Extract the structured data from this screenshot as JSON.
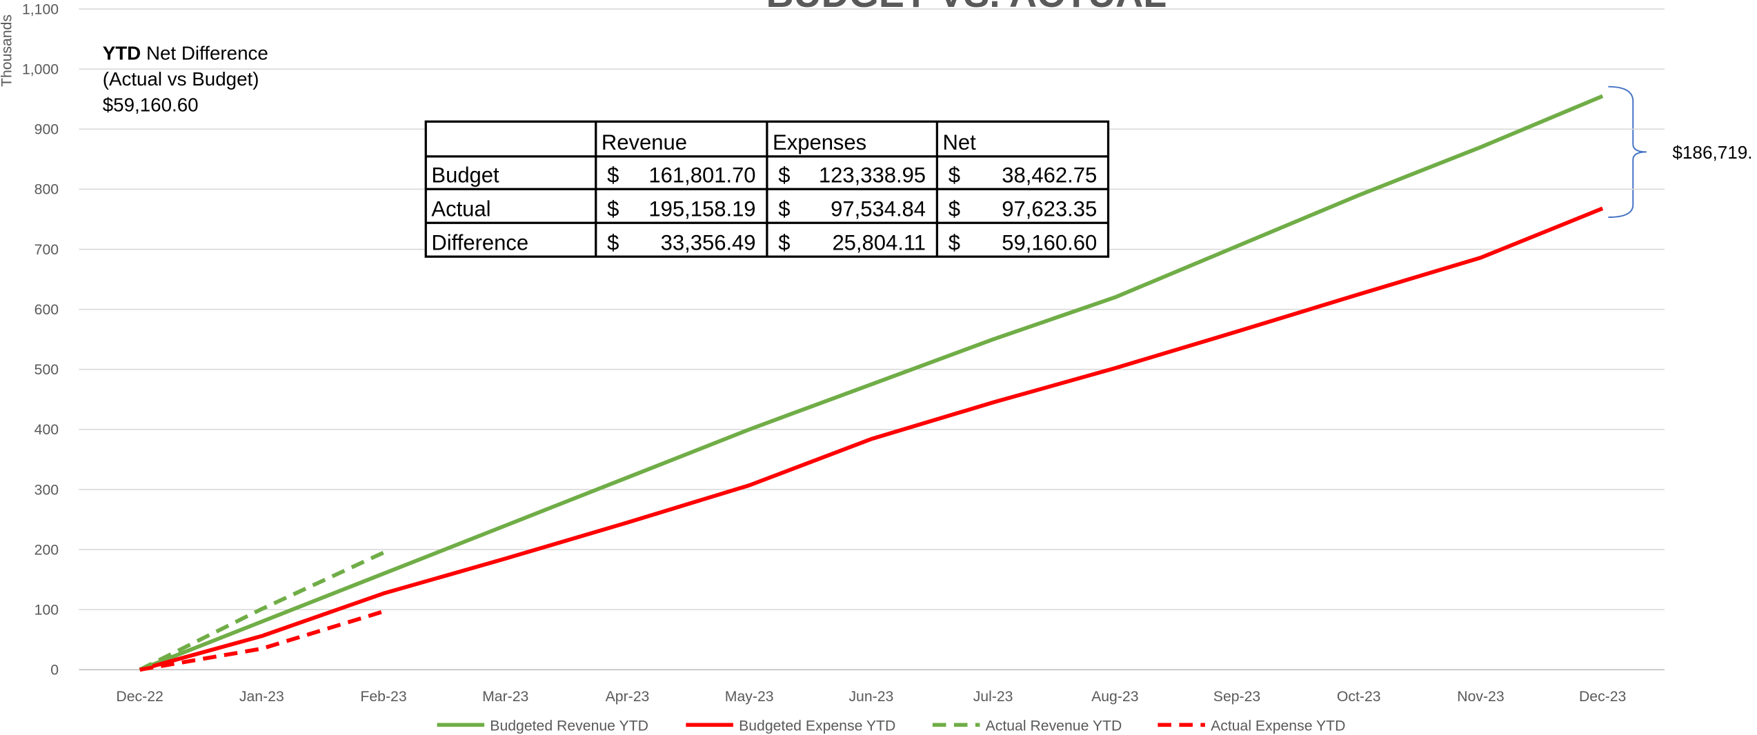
{
  "chart_data": {
    "type": "line",
    "title": "BUDGET VS. ACTUAL",
    "y_label": "Thousands",
    "categories": [
      "Dec-22",
      "Jan-23",
      "Feb-23",
      "Mar-23",
      "Apr-23",
      "May-23",
      "Jun-23",
      "Jul-23",
      "Aug-23",
      "Sep-23",
      "Oct-23",
      "Nov-23",
      "Dec-23"
    ],
    "series": [
      {
        "name": "Budgeted Revenue YTD",
        "color": "#70ad47",
        "dashed": false,
        "values": [
          0,
          80,
          160,
          240,
          320,
          400,
          475,
          550,
          620,
          705,
          790,
          870,
          955
        ]
      },
      {
        "name": "Budgeted Expense YTD",
        "color": "#ff0000",
        "dashed": false,
        "values": [
          0,
          56,
          127,
          185,
          245,
          307,
          384,
          445,
          502,
          563,
          625,
          686,
          768
        ]
      },
      {
        "name": "Actual Revenue YTD",
        "color": "#70ad47",
        "dashed": true,
        "values": [
          0,
          101,
          195,
          null,
          null,
          null,
          null,
          null,
          null,
          null,
          null,
          null,
          null
        ]
      },
      {
        "name": "Actual Expense YTD",
        "color": "#ff0000",
        "dashed": true,
        "values": [
          0,
          35,
          97,
          null,
          null,
          null,
          null,
          null,
          null,
          null,
          null,
          null,
          null
        ]
      }
    ],
    "ylim": [
      0,
      1100
    ],
    "yticks": [
      0,
      100,
      200,
      300,
      400,
      500,
      600,
      700,
      800,
      900,
      {
        "value": 1000,
        "label": "1,000"
      },
      {
        "value": 1100,
        "label": "1,100"
      }
    ],
    "grid": true,
    "legend": "bottom",
    "annotation": {
      "bold": "YTD",
      "text": "Net Difference",
      "line2": "(Actual vs Budget)",
      "line3": "$59,160.60"
    },
    "bracket_label": "$186,719."
  },
  "table": {
    "columns": [
      "Revenue",
      "Expenses",
      "Net"
    ],
    "rows": [
      {
        "label": "Budget",
        "cells": [
          [
            "$",
            "161,801.70"
          ],
          [
            "$",
            "123,338.95"
          ],
          [
            "$",
            "38,462.75"
          ]
        ]
      },
      {
        "label": "Actual",
        "cells": [
          [
            "$",
            "195,158.19"
          ],
          [
            "$",
            "97,534.84"
          ],
          [
            "$",
            "97,623.35"
          ]
        ]
      },
      {
        "label": "Difference",
        "cells": [
          [
            "$",
            "33,356.49"
          ],
          [
            "$",
            "25,804.11"
          ],
          [
            "$",
            "59,160.60"
          ]
        ]
      }
    ]
  }
}
